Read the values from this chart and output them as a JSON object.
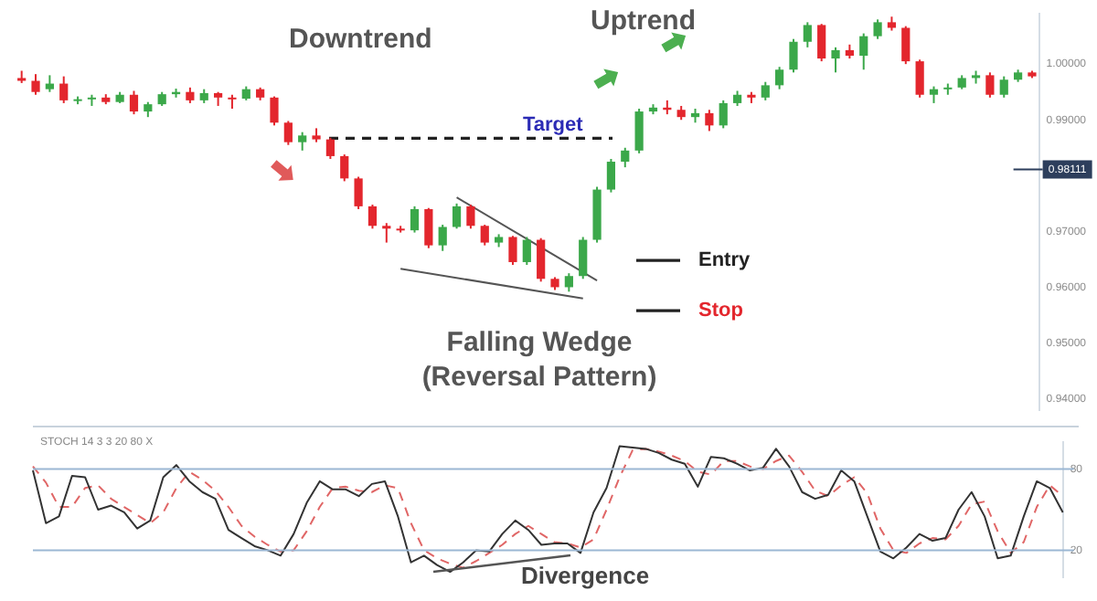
{
  "chart_data": [
    {
      "type": "candlestick",
      "categories": [
        null,
        null,
        null,
        null,
        null,
        null,
        null,
        null,
        null,
        null,
        null,
        null,
        null,
        null,
        null,
        null,
        null,
        null,
        null,
        null,
        null,
        null,
        null,
        null,
        null,
        null,
        null,
        null,
        null,
        null,
        null,
        null,
        null,
        null,
        null,
        null,
        null,
        null,
        null,
        null,
        null,
        null,
        null,
        null,
        null,
        null,
        null,
        null,
        null,
        null,
        null,
        null,
        null,
        null,
        null,
        null,
        null,
        null,
        null,
        null,
        null,
        null,
        null,
        null,
        null,
        null,
        null,
        null,
        null,
        null,
        null,
        null,
        null
      ],
      "colors": [
        "#e3262d",
        "#e3262d",
        "#3ba84a",
        "#e3262d",
        "#3ba84a",
        "#3ba84a",
        "#e3262d",
        "#3ba84a",
        "#e3262d",
        "#3ba84a",
        "#3ba84a",
        "#3ba84a",
        "#e3262d",
        "#3ba84a",
        "#e3262d",
        "#e3262d",
        "#3ba84a",
        "#e3262d",
        "#e3262d",
        "#e3262d",
        "#3ba84a",
        "#e3262d",
        "#e3262d",
        "#e3262d",
        "#e3262d",
        "#e3262d",
        "#e3262d",
        "#e3262d",
        "#3ba84a",
        "#e3262d",
        "#3ba84a",
        "#3ba84a",
        "#e3262d",
        "#e3262d",
        "#3ba84a",
        "#e3262d",
        "#3ba84a",
        "#e3262d",
        "#e3262d",
        "#3ba84a",
        "#3ba84a",
        "#3ba84a",
        "#3ba84a",
        "#3ba84a",
        "#3ba84a",
        "#3ba84a",
        "#e3262d",
        "#e3262d",
        "#3ba84a",
        "#e3262d",
        "#3ba84a",
        "#3ba84a",
        "#e3262d",
        "#3ba84a",
        "#3ba84a",
        "#3ba84a",
        "#3ba84a",
        "#e3262d",
        "#3ba84a",
        "#e3262d",
        "#3ba84a",
        "#3ba84a",
        "#e3262d",
        "#e3262d",
        "#e3262d",
        "#3ba84a",
        "#3ba84a",
        "#3ba84a",
        "#3ba84a",
        "#e3262d",
        "#3ba84a",
        "#3ba84a",
        "#e3262d"
      ],
      "ohlc": [
        [
          0.9975,
          0.9988,
          0.9966,
          0.997
        ],
        [
          0.997,
          0.9982,
          0.9945,
          0.995
        ],
        [
          0.9955,
          0.998,
          0.995,
          0.9965
        ],
        [
          0.9965,
          0.9978,
          0.993,
          0.9935
        ],
        [
          0.9935,
          0.9942,
          0.9928,
          0.9937
        ],
        [
          0.9937,
          0.9945,
          0.9925,
          0.994
        ],
        [
          0.994,
          0.9946,
          0.9928,
          0.9932
        ],
        [
          0.9932,
          0.995,
          0.993,
          0.9945
        ],
        [
          0.9945,
          0.9952,
          0.991,
          0.9915
        ],
        [
          0.9915,
          0.9932,
          0.9905,
          0.9928
        ],
        [
          0.9928,
          0.995,
          0.9925,
          0.9946
        ],
        [
          0.9946,
          0.9956,
          0.994,
          0.995
        ],
        [
          0.995,
          0.9958,
          0.993,
          0.9935
        ],
        [
          0.9935,
          0.9955,
          0.993,
          0.9948
        ],
        [
          0.9948,
          0.995,
          0.9925,
          0.994
        ],
        [
          0.994,
          0.9945,
          0.992,
          0.9938
        ],
        [
          0.9938,
          0.996,
          0.9935,
          0.9955
        ],
        [
          0.9955,
          0.9958,
          0.9935,
          0.994
        ],
        [
          0.994,
          0.9942,
          0.989,
          0.9895
        ],
        [
          0.9895,
          0.9898,
          0.9855,
          0.986
        ],
        [
          0.986,
          0.9878,
          0.9845,
          0.9872
        ],
        [
          0.9872,
          0.9885,
          0.986,
          0.9865
        ],
        [
          0.9865,
          0.9868,
          0.983,
          0.9835
        ],
        [
          0.9835,
          0.9838,
          0.979,
          0.9795
        ],
        [
          0.9795,
          0.9798,
          0.974,
          0.9745
        ],
        [
          0.9745,
          0.9748,
          0.9705,
          0.971
        ],
        [
          0.971,
          0.9715,
          0.968,
          0.9705
        ],
        [
          0.9705,
          0.971,
          0.9698,
          0.9702
        ],
        [
          0.9702,
          0.9745,
          0.9698,
          0.974
        ],
        [
          0.974,
          0.9742,
          0.967,
          0.9675
        ],
        [
          0.9675,
          0.9712,
          0.9665,
          0.9708
        ],
        [
          0.9708,
          0.975,
          0.9705,
          0.9745
        ],
        [
          0.9745,
          0.9748,
          0.9705,
          0.971
        ],
        [
          0.971,
          0.9712,
          0.9675,
          0.968
        ],
        [
          0.968,
          0.9695,
          0.9672,
          0.969
        ],
        [
          0.969,
          0.9692,
          0.964,
          0.9645
        ],
        [
          0.9645,
          0.969,
          0.964,
          0.9685
        ],
        [
          0.9685,
          0.9688,
          0.961,
          0.9615
        ],
        [
          0.9615,
          0.9618,
          0.9595,
          0.96
        ],
        [
          0.96,
          0.9625,
          0.9592,
          0.962
        ],
        [
          0.962,
          0.969,
          0.9615,
          0.9685
        ],
        [
          0.9685,
          0.978,
          0.968,
          0.9775
        ],
        [
          0.9775,
          0.983,
          0.977,
          0.9825
        ],
        [
          0.9825,
          0.985,
          0.9815,
          0.9845
        ],
        [
          0.9845,
          0.992,
          0.984,
          0.9915
        ],
        [
          0.9915,
          0.9928,
          0.991,
          0.9922
        ],
        [
          0.9922,
          0.9935,
          0.991,
          0.9918
        ],
        [
          0.9918,
          0.9925,
          0.99,
          0.9905
        ],
        [
          0.9905,
          0.992,
          0.9895,
          0.9912
        ],
        [
          0.9912,
          0.9918,
          0.988,
          0.989
        ],
        [
          0.989,
          0.9935,
          0.9885,
          0.993
        ],
        [
          0.993,
          0.9952,
          0.9925,
          0.9945
        ],
        [
          0.9945,
          0.995,
          0.993,
          0.994
        ],
        [
          0.994,
          0.9968,
          0.9935,
          0.9962
        ],
        [
          0.9962,
          0.9995,
          0.9955,
          0.999
        ],
        [
          0.999,
          1.0045,
          0.9985,
          1.004
        ],
        [
          1.004,
          1.0075,
          1.003,
          1.007
        ],
        [
          1.007,
          1.0072,
          1.0005,
          1.001
        ],
        [
          1.001,
          1.003,
          0.9985,
          1.0025
        ],
        [
          1.0025,
          1.0035,
          1.001,
          1.0015
        ],
        [
          1.0015,
          1.0055,
          0.999,
          1.005
        ],
        [
          1.005,
          1.008,
          1.0045,
          1.0075
        ],
        [
          1.0075,
          1.0085,
          1.006,
          1.0065
        ],
        [
          1.0065,
          1.0068,
          1.0,
          1.0005
        ],
        [
          1.0005,
          1.0008,
          0.994,
          0.9945
        ],
        [
          0.9945,
          0.996,
          0.993,
          0.9955
        ],
        [
          0.9955,
          0.9965,
          0.9945,
          0.9958
        ],
        [
          0.9958,
          0.998,
          0.9955,
          0.9975
        ],
        [
          0.9975,
          0.9988,
          0.9965,
          0.998
        ],
        [
          0.998,
          0.9985,
          0.994,
          0.9945
        ],
        [
          0.9945,
          0.9978,
          0.994,
          0.9972
        ],
        [
          0.9972,
          0.999,
          0.9968,
          0.9985
        ],
        [
          0.9985,
          0.9988,
          0.9975,
          0.9978
        ]
      ],
      "ylim": [
        0.938,
        1.009
      ],
      "yticks": [
        {
          "value": 0.94,
          "label": "0.94000"
        },
        {
          "value": 0.95,
          "label": "0.95000"
        },
        {
          "value": 0.96,
          "label": "0.96000"
        },
        {
          "value": 0.97,
          "label": "0.97000"
        },
        {
          "value": 0.99,
          "label": "0.99000"
        },
        {
          "value": 1.0,
          "label": "1.00000"
        }
      ],
      "ref_lines": [
        {
          "axis": "y",
          "value": 0.9867,
          "label": "Target",
          "color": "#222222",
          "line_style": "dashed"
        },
        {
          "axis": "y",
          "value": 0.9648,
          "label": "Entry",
          "color": "#222222"
        },
        {
          "axis": "y",
          "value": 0.9558,
          "label": "Stop",
          "color": "#222222"
        },
        {
          "axis": "y",
          "value": 0.98111,
          "label": "0.98111",
          "color": "#2d3e5c"
        }
      ],
      "series": [
        {
          "type": "line",
          "color": "#555555",
          "values": [
            null,
            null,
            null,
            null,
            null,
            null,
            null,
            null,
            null,
            null,
            null,
            null,
            null,
            null,
            null,
            null,
            null,
            null,
            null,
            null,
            null,
            null,
            null,
            null,
            null,
            null,
            null,
            null,
            null,
            null,
            null,
            0.9761,
            null,
            null,
            null,
            null,
            null,
            null,
            null,
            null,
            null,
            0.9612,
            null,
            null,
            null,
            null,
            null,
            null,
            null,
            null,
            null,
            null,
            null,
            null,
            null,
            null,
            null,
            null,
            null,
            null,
            null,
            null,
            null,
            null,
            null,
            null,
            null,
            null,
            null,
            null,
            null,
            null,
            null
          ]
        },
        {
          "type": "line",
          "color": "#555555",
          "values": [
            null,
            null,
            null,
            null,
            null,
            null,
            null,
            null,
            null,
            null,
            null,
            null,
            null,
            null,
            null,
            null,
            null,
            null,
            null,
            null,
            null,
            null,
            null,
            null,
            null,
            null,
            null,
            0.9633,
            null,
            null,
            null,
            null,
            null,
            null,
            null,
            null,
            null,
            null,
            null,
            null,
            0.958,
            null,
            null,
            null,
            null,
            null,
            null,
            null,
            null,
            null,
            null,
            null,
            null,
            null,
            null,
            null,
            null,
            null,
            null,
            null,
            null,
            null,
            null,
            null,
            null,
            null,
            null,
            null,
            null,
            null,
            null,
            null,
            null
          ]
        }
      ],
      "annotations": [
        "Downtrend",
        "Uptrend",
        "Falling Wedge\n(Reversal Pattern)"
      ]
    },
    {
      "type": "line",
      "title": "STOCH 14 3 3 20 80 X",
      "categories": [
        null,
        null,
        null,
        null,
        null,
        null,
        null,
        null,
        null,
        null,
        null,
        null,
        null,
        null,
        null,
        null,
        null,
        null,
        null,
        null,
        null,
        null,
        null,
        null,
        null,
        null,
        null,
        null,
        null,
        null,
        null,
        null,
        null,
        null,
        null,
        null,
        null,
        null,
        null,
        null,
        null,
        null,
        null,
        null,
        null,
        null,
        null,
        null,
        null,
        null,
        null,
        null,
        null,
        null,
        null,
        null,
        null,
        null,
        null,
        null,
        null,
        null,
        null,
        null,
        null,
        null,
        null,
        null,
        null,
        null,
        null,
        null,
        null,
        null,
        null,
        null,
        null,
        null,
        null,
        null
      ],
      "series": [
        {
          "color": "#333333",
          "values": [
            79,
            40,
            45,
            75,
            74,
            50,
            53,
            48,
            36,
            42,
            74,
            83,
            71,
            63,
            58,
            35,
            29,
            23,
            20,
            16,
            32,
            55,
            71,
            65,
            65,
            60,
            69,
            71,
            45,
            11,
            16,
            9,
            4,
            11,
            20,
            19,
            32,
            42,
            35,
            24,
            25,
            25,
            18,
            48,
            66,
            97,
            96,
            95,
            92,
            87,
            84,
            67,
            89,
            88,
            84,
            79,
            81,
            95,
            82,
            63,
            58,
            61,
            79,
            71,
            45,
            19,
            14,
            22,
            32,
            27,
            29,
            50,
            63,
            45,
            14,
            16,
            45,
            71,
            66,
            48
          ]
        },
        {
          "color": "#e06666",
          "line_style": "dashed",
          "values": [
            82,
            70,
            52,
            52,
            66,
            68,
            58,
            52,
            46,
            40,
            48,
            66,
            78,
            72,
            64,
            52,
            38,
            30,
            24,
            19,
            20,
            34,
            52,
            66,
            67,
            64,
            63,
            68,
            66,
            40,
            20,
            14,
            10,
            7,
            12,
            18,
            24,
            32,
            38,
            32,
            26,
            25,
            22,
            28,
            50,
            74,
            94,
            95,
            93,
            90,
            86,
            78,
            76,
            86,
            86,
            82,
            80,
            86,
            90,
            78,
            64,
            60,
            68,
            74,
            62,
            36,
            20,
            18,
            25,
            29,
            28,
            38,
            54,
            56,
            34,
            18,
            26,
            52,
            68,
            60
          ]
        }
      ],
      "ylim": [
        0,
        100
      ],
      "yticks": [
        20,
        80
      ],
      "ref_lines": [
        {
          "axis": "y",
          "value": 80,
          "color": "#9bb7d4"
        },
        {
          "axis": "y",
          "value": 20,
          "color": "#9bb7d4"
        }
      ],
      "annotations": [
        "Divergence"
      ]
    }
  ]
}
